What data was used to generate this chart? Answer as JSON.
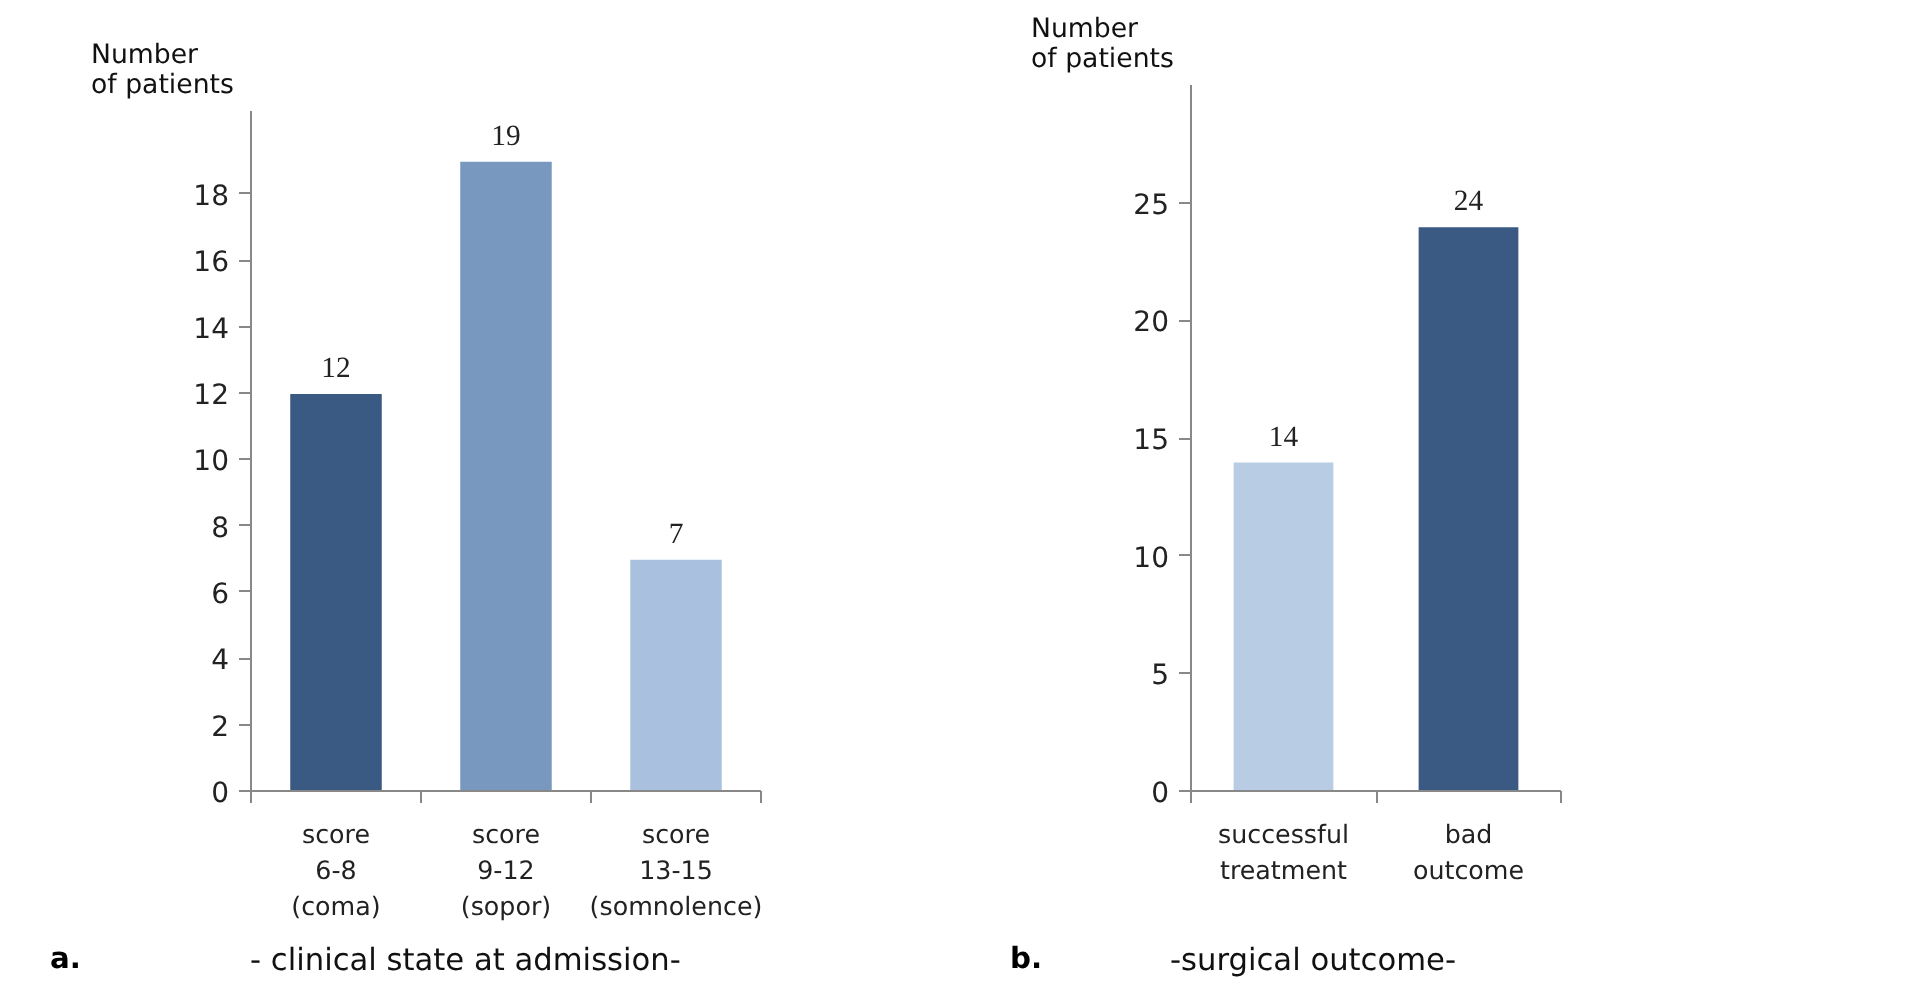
{
  "chart_data": [
    {
      "type": "bar",
      "title": "- clinical state at admission-",
      "ylabel": "Number\nof patients",
      "annotations": [
        "a."
      ],
      "categories": [
        "score\n6-8\n(coma)",
        "score\n9-12\n(sopor)",
        "score\n13-15\n(somnolence)"
      ],
      "values": [
        12,
        19,
        7
      ],
      "colors": [
        "#3a5a84",
        "#7898c0",
        "#a9c1de"
      ],
      "ylim": [
        0,
        20.5
      ],
      "yticks": [
        0,
        2,
        4,
        6,
        8,
        10,
        12,
        14,
        16,
        18
      ],
      "data_labels": true,
      "grid": false
    },
    {
      "type": "bar",
      "title": "-surgical outcome-",
      "ylabel": "Number\nof patients",
      "annotations": [
        "b."
      ],
      "categories": [
        "successful\ntreatment",
        "bad\noutcome"
      ],
      "values": [
        14,
        24
      ],
      "colors": [
        "#b8cce4",
        "#3a5a84"
      ],
      "ylim": [
        0,
        30
      ],
      "yticks": [
        0,
        5,
        10,
        15,
        20,
        25
      ],
      "data_labels": true,
      "grid": false
    }
  ]
}
